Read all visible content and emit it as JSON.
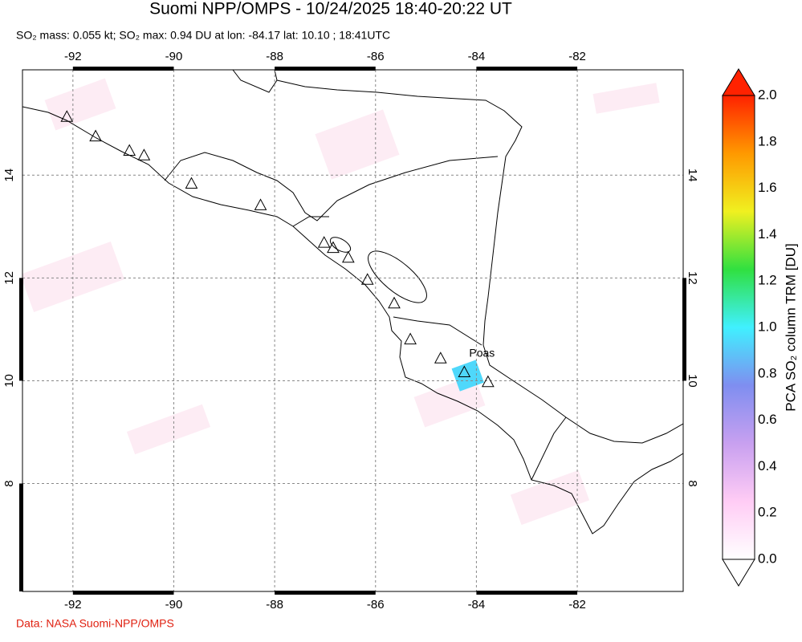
{
  "title": "Suomi NPP/OMPS - 10/24/2025 18:40-20:22 UT",
  "subtitle": "SO₂ mass: 0.055 kt; SO₂ max: 0.94 DU at lon: -84.17 lat: 10.10 ; 18:41UTC",
  "map": {
    "lonlim": [
      -93,
      -79.9
    ],
    "latlim": [
      5.9,
      16.05
    ],
    "lonticks": [
      -92,
      -90,
      -88,
      -86,
      -84,
      -82
    ],
    "latticks": [
      8,
      10,
      12,
      14
    ],
    "volcanoes": [
      [
        -92.12,
        15.14
      ],
      [
        -91.55,
        14.76
      ],
      [
        -90.88,
        14.48
      ],
      [
        -90.59,
        14.39
      ],
      [
        -89.65,
        13.84
      ],
      [
        -88.28,
        13.42
      ],
      [
        -87.02,
        12.69
      ],
      [
        -86.84,
        12.59
      ],
      [
        -86.54,
        12.4
      ],
      [
        -86.16,
        11.97
      ],
      [
        -85.63,
        11.51
      ],
      [
        -85.31,
        10.81
      ],
      [
        -84.71,
        10.44
      ],
      [
        -84.24,
        10.17
      ],
      [
        -83.77,
        9.98
      ]
    ],
    "volcano_label": "Poas",
    "pixels": [
      {
        "lon": -84.17,
        "lat": 10.1,
        "value": 0.94
      }
    ]
  },
  "colorbar": {
    "label": "PCA SO₂ column TRM [DU]",
    "lim": [
      0,
      2
    ],
    "ticks": [
      {
        "value": 0,
        "label": "0.0"
      },
      0.2,
      0.4,
      0.6,
      0.8,
      {
        "value": 1,
        "label": "1.0"
      },
      1.2,
      1.4,
      1.6,
      1.8,
      {
        "value": 2,
        "label": "2.0"
      }
    ],
    "colors": [
      "#ffffff",
      "#ffccf5",
      "#c8a0f0",
      "#7f8ef0",
      "#40f0ff",
      "#30e040",
      "#f0f020",
      "#ff9900",
      "#ff2200"
    ]
  },
  "credit": "Data: NASA Suomi-NPP/OMPS"
}
